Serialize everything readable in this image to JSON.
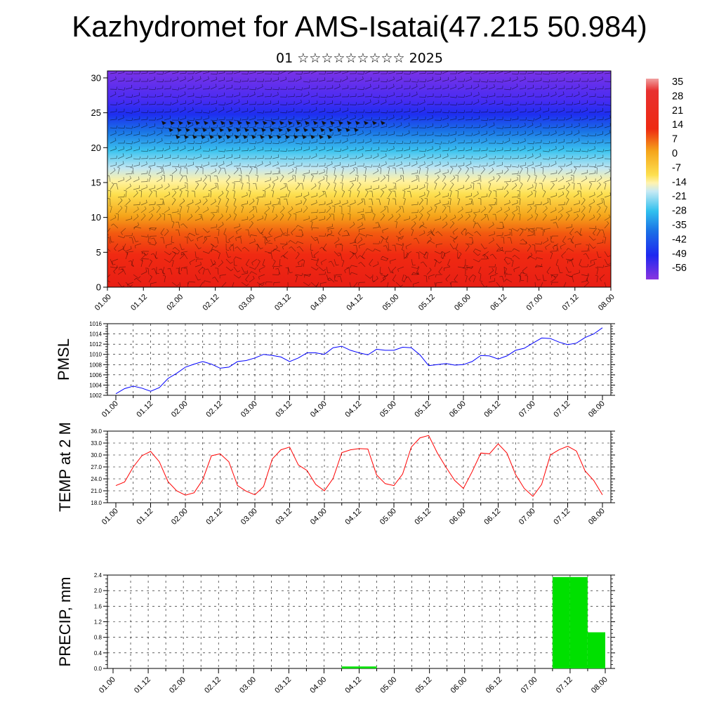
{
  "title": "Kazhydromet for AMS-Isatai(47.215 50.984)",
  "subtitle": "01 ☆☆☆☆☆☆☆☆☆ 2025",
  "time_labels": [
    "01.00",
    "01.12",
    "02.00",
    "02.12",
    "03.00",
    "03.12",
    "04.00",
    "04.12",
    "05.00",
    "05.12",
    "06.00",
    "06.12",
    "07.00",
    "07.12",
    "08.00"
  ],
  "chart_data": [
    {
      "type": "heatmap",
      "title": "",
      "xlabel": "",
      "ylabel": "",
      "x_tick_labels": [
        "01.00",
        "01.12",
        "02.00",
        "02.12",
        "03.00",
        "03.12",
        "04.00",
        "04.12",
        "05.00",
        "05.12",
        "06.00",
        "06.12",
        "07.00",
        "07.12",
        "08.00"
      ],
      "y_ticks": [
        0,
        5,
        10,
        15,
        20,
        25,
        30
      ],
      "ylim": [
        0,
        31
      ],
      "colorbar_labels": [
        "35",
        "28",
        "21",
        "14",
        "7",
        "0",
        "-7",
        "-14",
        "-21",
        "-28",
        "-35",
        "-42",
        "-49",
        "-56"
      ],
      "temperature_by_level": [
        {
          "level": 0,
          "value": 32
        },
        {
          "level": 5,
          "value": 26
        },
        {
          "level": 8,
          "value": 18
        },
        {
          "level": 12,
          "value": 6
        },
        {
          "level": 15,
          "value": -6
        },
        {
          "level": 17,
          "value": -14
        },
        {
          "level": 20,
          "value": -30
        },
        {
          "level": 23,
          "value": -44
        },
        {
          "level": 26,
          "value": -52
        },
        {
          "level": 31,
          "value": -60
        }
      ],
      "wind_barbs": true
    },
    {
      "type": "line",
      "ylabel": "PMSL",
      "ylim": [
        1002,
        1016
      ],
      "y_tick_labels": [
        "1002",
        "1004",
        "1006",
        "1008",
        "1010",
        "1012",
        "1014",
        "1016"
      ],
      "x_tick_labels": [
        "01.00",
        "01.12",
        "02.00",
        "02.12",
        "03.00",
        "03.12",
        "04.00",
        "04.12",
        "05.00",
        "05.12",
        "06.00",
        "06.12",
        "07.00",
        "07.12",
        "08.00"
      ],
      "series": [
        {
          "color": "#0000ff",
          "values": [
            1002.3,
            1003.3,
            1003.8,
            1003.4,
            1002.8,
            1003.5,
            1005.3,
            1006.3,
            1007.5,
            1008.1,
            1008.6,
            1008.1,
            1007.3,
            1007.5,
            1008.6,
            1008.8,
            1009.3,
            1010.0,
            1009.8,
            1009.5,
            1008.6,
            1009.3,
            1010.3,
            1010.3,
            1010.0,
            1011.3,
            1011.6,
            1010.8,
            1010.3,
            1009.9,
            1011.0,
            1010.8,
            1010.8,
            1011.4,
            1011.3,
            1009.9,
            1007.8,
            1008.0,
            1008.2,
            1007.9,
            1008.0,
            1008.6,
            1009.8,
            1009.7,
            1009.1,
            1009.7,
            1010.8,
            1011.2,
            1012.2,
            1013.2,
            1013.1,
            1012.4,
            1011.9,
            1012.2,
            1013.3,
            1014.0,
            1015.2
          ]
        }
      ]
    },
    {
      "type": "line",
      "ylabel": "TEMP at 2 M",
      "ylim": [
        18,
        36
      ],
      "y_tick_labels": [
        "18.0",
        "21.0",
        "24.0",
        "27.0",
        "30.0",
        "33.0",
        "36.0"
      ],
      "x_tick_labels": [
        "01.00",
        "01.12",
        "02.00",
        "02.12",
        "03.00",
        "03.12",
        "04.00",
        "04.12",
        "05.00",
        "05.12",
        "06.00",
        "06.12",
        "07.00",
        "07.12",
        "08.00"
      ],
      "series": [
        {
          "color": "#ff0000",
          "values": [
            22.3,
            23.2,
            27.0,
            29.8,
            30.9,
            28.3,
            23.3,
            21.0,
            19.9,
            20.5,
            23.8,
            29.8,
            30.3,
            28.3,
            22.3,
            20.9,
            20.0,
            22.1,
            29.0,
            31.3,
            32.0,
            27.5,
            26.1,
            22.6,
            21.0,
            24.1,
            30.6,
            31.3,
            31.6,
            31.5,
            25.0,
            22.8,
            22.3,
            25.2,
            32.0,
            34.3,
            34.9,
            30.5,
            26.9,
            23.6,
            21.6,
            25.8,
            30.5,
            30.3,
            32.8,
            30.5,
            25.1,
            21.6,
            19.6,
            22.6,
            30.0,
            31.3,
            32.2,
            31.0,
            26.0,
            23.6,
            20.0
          ]
        }
      ]
    },
    {
      "type": "bar",
      "ylabel": "PRECIP, mm",
      "ylim": [
        0,
        2.4
      ],
      "y_tick_labels": [
        "0.0",
        "0.4",
        "0.8",
        "1.2",
        "1.6",
        "2.0",
        "2.4"
      ],
      "x_tick_labels": [
        "01.00",
        "01.12",
        "02.00",
        "02.12",
        "03.00",
        "03.12",
        "04.00",
        "04.12",
        "05.00",
        "05.12",
        "06.00",
        "06.12",
        "07.00",
        "07.12",
        "08.00"
      ],
      "color": "#00e000",
      "bars": [
        {
          "t": 3.25,
          "value": 0.05
        },
        {
          "t": 3.5,
          "value": 0.05
        },
        {
          "t": 6.25,
          "value": 2.35
        },
        {
          "t": 6.5,
          "value": 2.35
        },
        {
          "t": 6.75,
          "value": 0.93
        }
      ]
    }
  ]
}
